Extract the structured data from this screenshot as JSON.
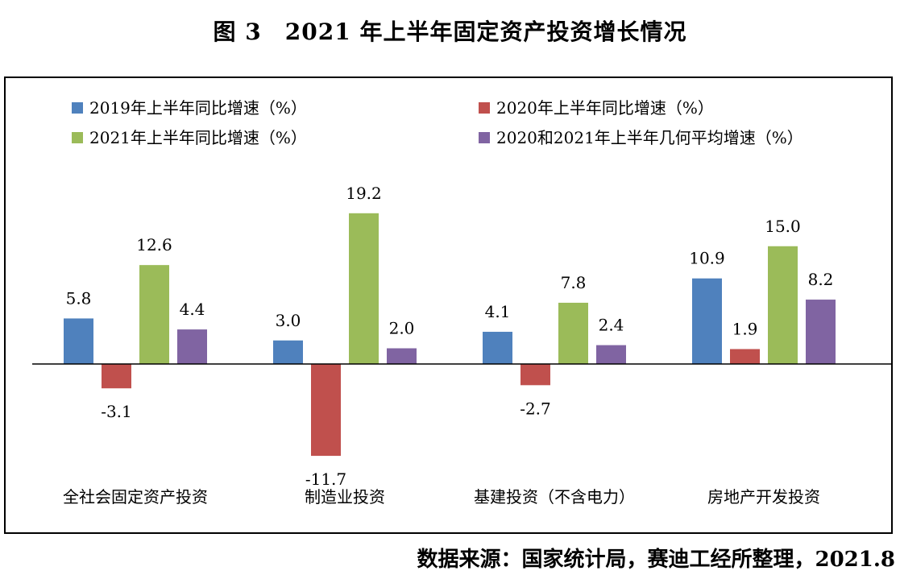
{
  "title": "图 3　2021 年上半年固定资产投资增长情况",
  "source": "数据来源：国家统计局，赛迪工经所整理，2021.8",
  "chart_data": {
    "type": "bar",
    "categories": [
      "全社会固定资产投资",
      "制造业投资",
      "基建投资（不含电力）",
      "房地产开发投资"
    ],
    "series": [
      {
        "name": "2019年上半年同比增速（%）",
        "color": "#4f81bd",
        "values": [
          5.8,
          3.0,
          4.1,
          10.9
        ]
      },
      {
        "name": "2020年上半年同比增速（%）",
        "color": "#c0504d",
        "values": [
          -3.1,
          -11.7,
          -2.7,
          1.9
        ]
      },
      {
        "name": "2021年上半年同比增速（%）",
        "color": "#9bbb59",
        "values": [
          12.6,
          19.2,
          7.8,
          15.0
        ]
      },
      {
        "name": "2020和2021年上半年几何平均增速（%）",
        "color": "#8064a2",
        "values": [
          4.4,
          2.0,
          2.4,
          8.2
        ]
      }
    ],
    "value_labels": [
      [
        "5.8",
        "3.0",
        "4.1",
        "10.9"
      ],
      [
        "-3.1",
        "-11.7",
        "-2.7",
        "1.9"
      ],
      [
        "12.6",
        "19.2",
        "7.8",
        "15.0"
      ],
      [
        "4.4",
        "2.0",
        "2.4",
        "8.2"
      ]
    ],
    "legend_position": "top",
    "grid": false,
    "ylim": [
      -14,
      22
    ]
  }
}
